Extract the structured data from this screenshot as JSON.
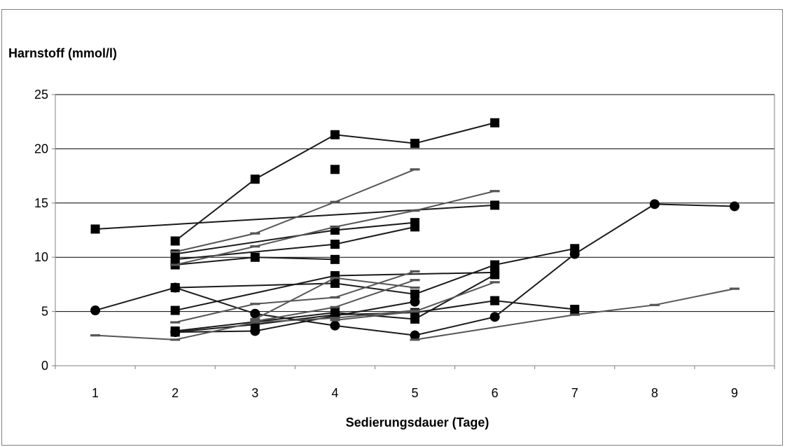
{
  "chart_data": {
    "type": "line",
    "ylabel": "Harnstoff (mmol/l)",
    "xlabel": "Sedierungsdauer (Tage)",
    "x_categories": [
      "1",
      "2",
      "3",
      "4",
      "5",
      "6",
      "7",
      "8",
      "9"
    ],
    "y_ticks": [
      "0",
      "5",
      "10",
      "15",
      "20",
      "25"
    ],
    "ylim": [
      0,
      25
    ],
    "grid": "horizontal",
    "series": [
      {
        "marker": "square",
        "color": "#1a1a1a",
        "points": [
          [
            2,
            11.5
          ],
          [
            3,
            17.2
          ],
          [
            4,
            21.3
          ],
          [
            5,
            20.5
          ],
          [
            6,
            22.4
          ]
        ]
      },
      {
        "marker": "square",
        "color": "#1a1a1a",
        "points": [
          [
            1,
            12.6
          ],
          [
            6,
            14.8
          ]
        ]
      },
      {
        "marker": "square",
        "color": "#1a1a1a",
        "points": [
          [
            4,
            18.1
          ]
        ]
      },
      {
        "marker": "square",
        "color": "#1a1a1a",
        "points": [
          [
            2,
            10.3
          ],
          [
            4,
            12.5
          ],
          [
            5,
            13.2
          ]
        ]
      },
      {
        "marker": "square",
        "color": "#1a1a1a",
        "points": [
          [
            2,
            9.8
          ],
          [
            4,
            11.2
          ],
          [
            5,
            12.8
          ]
        ]
      },
      {
        "marker": "square",
        "color": "#1a1a1a",
        "points": [
          [
            2,
            9.3
          ],
          [
            3,
            10.0
          ],
          [
            4,
            9.8
          ]
        ]
      },
      {
        "marker": "square",
        "color": "#1a1a1a",
        "points": [
          [
            2,
            5.1
          ],
          [
            4,
            8.3
          ],
          [
            6,
            8.6
          ]
        ]
      },
      {
        "marker": "square",
        "color": "#1a1a1a",
        "points": [
          [
            2,
            7.2
          ],
          [
            4,
            7.6
          ],
          [
            5,
            6.6
          ],
          [
            6,
            9.3
          ],
          [
            7,
            10.8
          ]
        ]
      },
      {
        "marker": "square",
        "color": "#1a1a1a",
        "points": [
          [
            2,
            3.1
          ],
          [
            3,
            3.8
          ],
          [
            4,
            4.7
          ],
          [
            5,
            4.9
          ],
          [
            6,
            6.0
          ],
          [
            7,
            5.2
          ]
        ]
      },
      {
        "marker": "square",
        "color": "#1a1a1a",
        "points": [
          [
            2,
            3.2
          ],
          [
            4,
            4.9
          ],
          [
            5,
            4.3
          ],
          [
            6,
            8.4
          ]
        ]
      },
      {
        "marker": "circle",
        "color": "#1a1a1a",
        "points": [
          [
            1,
            5.1
          ],
          [
            2,
            7.2
          ],
          [
            3,
            4.8
          ],
          [
            4,
            3.7
          ],
          [
            5,
            2.8
          ],
          [
            6,
            4.5
          ],
          [
            7,
            10.3
          ],
          [
            8,
            14.9
          ],
          [
            9,
            14.7
          ]
        ]
      },
      {
        "marker": "circle",
        "color": "#1a1a1a",
        "points": [
          [
            2,
            3.1
          ],
          [
            3,
            3.2
          ],
          [
            4,
            4.6
          ],
          [
            5,
            5.9
          ]
        ]
      },
      {
        "marker": "dash",
        "color": "#555555",
        "points": [
          [
            2,
            10.5
          ],
          [
            3,
            12.2
          ],
          [
            4,
            15.1
          ],
          [
            5,
            18.1
          ]
        ]
      },
      {
        "marker": "dash",
        "color": "#555555",
        "points": [
          [
            2,
            9.3
          ],
          [
            3,
            11.0
          ],
          [
            4,
            12.8
          ],
          [
            5,
            14.3
          ],
          [
            6,
            16.1
          ]
        ]
      },
      {
        "marker": "dash",
        "color": "#555555",
        "points": [
          [
            2,
            4.0
          ],
          [
            3,
            5.7
          ],
          [
            4,
            6.3
          ],
          [
            5,
            8.7
          ]
        ]
      },
      {
        "marker": "dash",
        "color": "#555555",
        "points": [
          [
            3,
            4.3
          ],
          [
            4,
            8.1
          ],
          [
            5,
            7.2
          ]
        ]
      },
      {
        "marker": "dash",
        "color": "#555555",
        "points": [
          [
            3,
            4.1
          ],
          [
            4,
            5.4
          ],
          [
            5,
            7.9
          ]
        ]
      },
      {
        "marker": "dash",
        "color": "#555555",
        "points": [
          [
            4,
            4.2
          ],
          [
            5,
            5.0
          ],
          [
            6,
            7.7
          ]
        ]
      },
      {
        "marker": "dash",
        "color": "#555555",
        "points": [
          [
            1,
            2.8
          ],
          [
            2,
            2.4
          ],
          [
            3,
            4.0
          ],
          [
            4,
            4.4
          ],
          [
            5,
            5.1
          ]
        ]
      },
      {
        "marker": "dash",
        "color": "#555555",
        "points": [
          [
            5,
            2.4
          ],
          [
            7,
            4.7
          ],
          [
            8,
            5.6
          ],
          [
            9,
            7.1
          ]
        ]
      }
    ]
  }
}
